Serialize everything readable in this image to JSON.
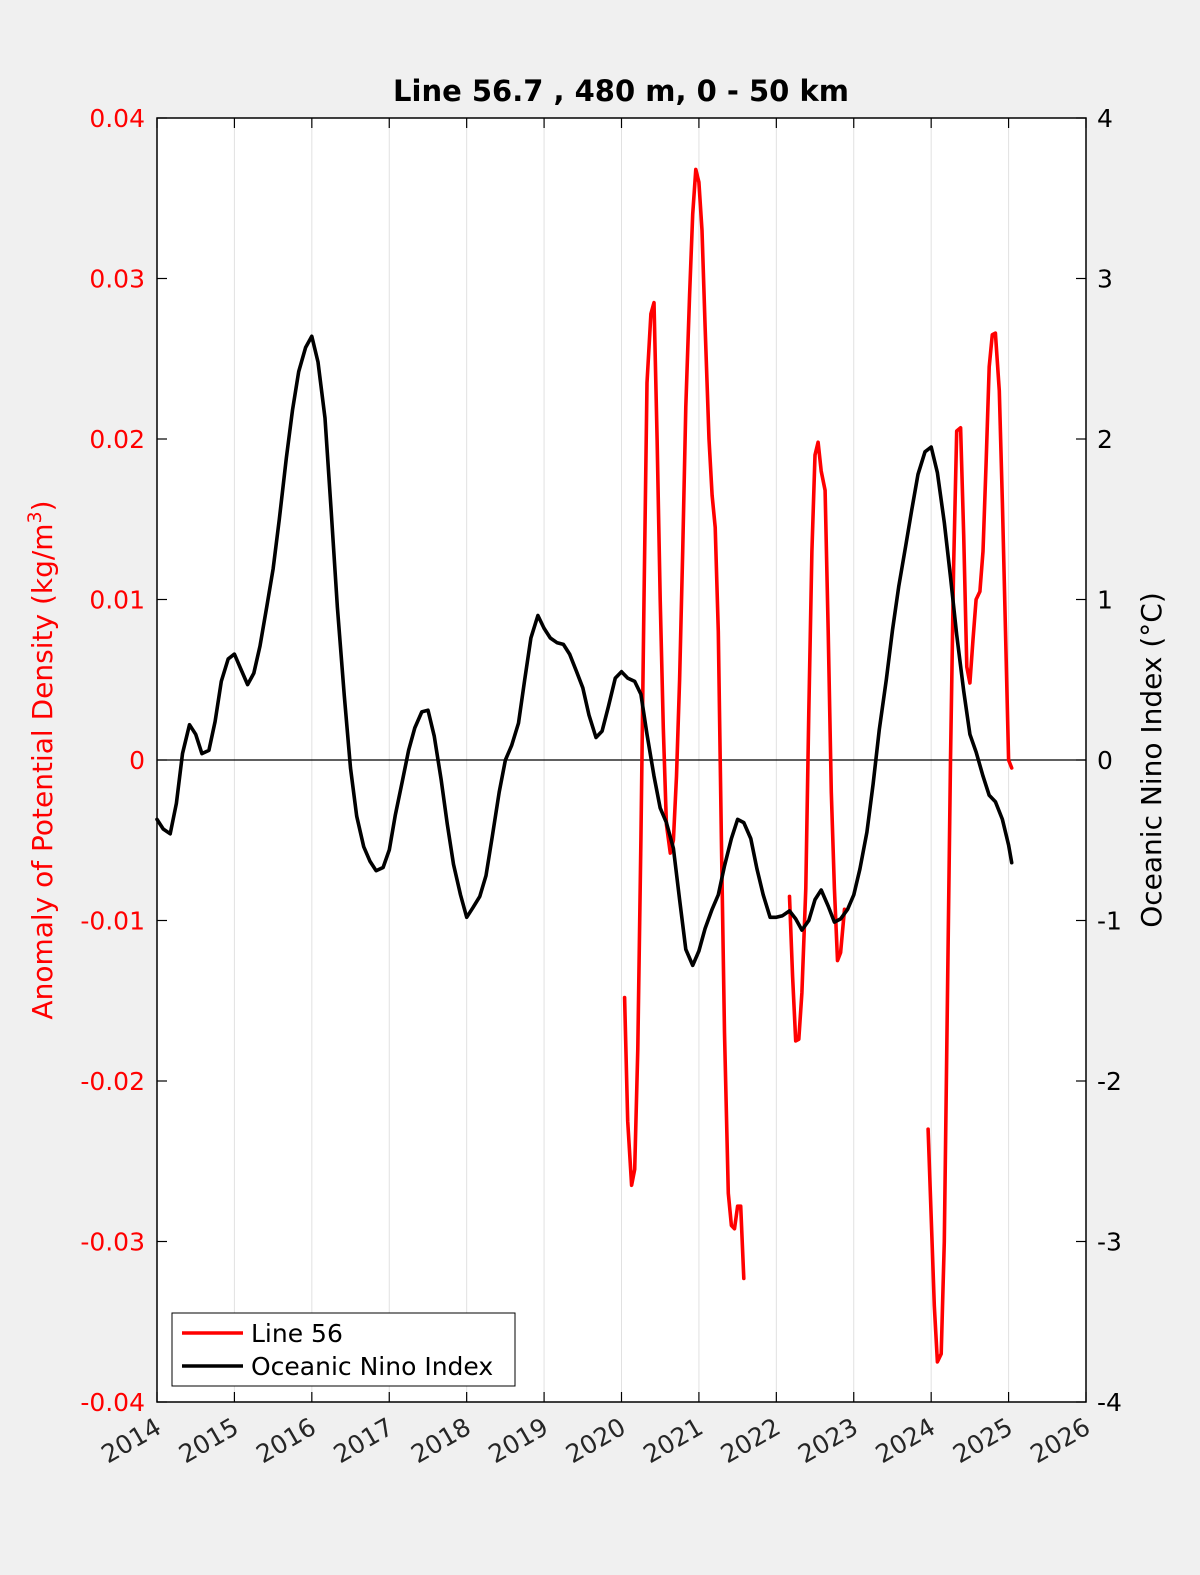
{
  "chart_data": {
    "type": "line",
    "title": "Line 56.7 , 480 m, 0 - 50 km",
    "xlabel": "",
    "xlim": [
      2014,
      2026
    ],
    "x_ticks": [
      "2014",
      "2015",
      "2016",
      "2017",
      "2018",
      "2019",
      "2020",
      "2021",
      "2022",
      "2023",
      "2024",
      "2025",
      "2026"
    ],
    "y_left": {
      "label": "Anomaly of Potential Density (kg/m",
      "label_superscript": "3",
      "label_suffix": ")",
      "lim": [
        -0.04,
        0.04
      ],
      "ticks": [
        "-0.04",
        "-0.03",
        "-0.02",
        "-0.01",
        "0",
        "0.01",
        "0.02",
        "0.03",
        "0.04"
      ],
      "color": "#ff0000"
    },
    "y_right": {
      "label": "Oceanic Nino Index (°C)",
      "lim": [
        -4,
        4
      ],
      "ticks": [
        "-4",
        "-3",
        "-2",
        "-1",
        "0",
        "1",
        "2",
        "3",
        "4"
      ],
      "color": "#000000"
    },
    "grid": "vertical",
    "legend_position": "bottom-left",
    "series": [
      {
        "name": "Line 56",
        "axis": "left",
        "color": "#ff0000",
        "segments": [
          [
            [
              2020.04,
              -0.0148
            ],
            [
              2020.08,
              -0.0225
            ],
            [
              2020.13,
              -0.0265
            ],
            [
              2020.17,
              -0.0255
            ],
            [
              2020.21,
              -0.018
            ],
            [
              2020.25,
              -0.005
            ],
            [
              2020.29,
              0.01
            ],
            [
              2020.33,
              0.0235
            ],
            [
              2020.38,
              0.0278
            ],
            [
              2020.42,
              0.0285
            ],
            [
              2020.46,
              0.02
            ],
            [
              2020.5,
              0.01
            ],
            [
              2020.54,
              0.002
            ],
            [
              2020.58,
              -0.004
            ],
            [
              2020.63,
              -0.0058
            ],
            [
              2020.67,
              -0.005
            ],
            [
              2020.71,
              -0.001
            ],
            [
              2020.75,
              0.005
            ],
            [
              2020.79,
              0.013
            ],
            [
              2020.83,
              0.022
            ],
            [
              2020.88,
              0.029
            ],
            [
              2020.92,
              0.034
            ],
            [
              2020.96,
              0.0368
            ],
            [
              2021.0,
              0.036
            ],
            [
              2021.04,
              0.033
            ],
            [
              2021.08,
              0.027
            ],
            [
              2021.13,
              0.02
            ],
            [
              2021.17,
              0.0165
            ],
            [
              2021.21,
              0.0145
            ],
            [
              2021.25,
              0.008
            ],
            [
              2021.29,
              -0.005
            ],
            [
              2021.33,
              -0.017
            ],
            [
              2021.38,
              -0.027
            ],
            [
              2021.42,
              -0.029
            ],
            [
              2021.46,
              -0.0292
            ],
            [
              2021.5,
              -0.0278
            ],
            [
              2021.54,
              -0.0278
            ],
            [
              2021.58,
              -0.0323
            ]
          ],
          [
            [
              2022.17,
              -0.0085
            ],
            [
              2022.21,
              -0.0135
            ],
            [
              2022.25,
              -0.0175
            ],
            [
              2022.29,
              -0.0174
            ],
            [
              2022.33,
              -0.0145
            ],
            [
              2022.38,
              -0.008
            ],
            [
              2022.42,
              0.003
            ],
            [
              2022.46,
              0.013
            ],
            [
              2022.5,
              0.019
            ],
            [
              2022.54,
              0.0198
            ],
            [
              2022.58,
              0.018
            ],
            [
              2022.63,
              0.0168
            ],
            [
              2022.67,
              0.008
            ],
            [
              2022.71,
              -0.002
            ],
            [
              2022.75,
              -0.008
            ],
            [
              2022.79,
              -0.0125
            ],
            [
              2022.83,
              -0.012
            ],
            [
              2022.88,
              -0.0093
            ]
          ],
          [
            [
              2023.96,
              -0.023
            ],
            [
              2024.0,
              -0.0285
            ],
            [
              2024.04,
              -0.034
            ],
            [
              2024.08,
              -0.0375
            ],
            [
              2024.13,
              -0.037
            ],
            [
              2024.17,
              -0.03
            ],
            [
              2024.21,
              -0.015
            ],
            [
              2024.25,
              0.0
            ],
            [
              2024.29,
              0.012
            ],
            [
              2024.33,
              0.0205
            ],
            [
              2024.38,
              0.0207
            ],
            [
              2024.42,
              0.014
            ],
            [
              2024.46,
              0.0058
            ],
            [
              2024.5,
              0.0048
            ],
            [
              2024.54,
              0.0075
            ],
            [
              2024.58,
              0.01
            ],
            [
              2024.63,
              0.0105
            ],
            [
              2024.67,
              0.013
            ],
            [
              2024.71,
              0.0185
            ],
            [
              2024.75,
              0.0245
            ],
            [
              2024.79,
              0.0265
            ],
            [
              2024.83,
              0.0266
            ],
            [
              2024.88,
              0.023
            ],
            [
              2024.92,
              0.016
            ],
            [
              2024.96,
              0.008
            ],
            [
              2025.0,
              0.0
            ],
            [
              2025.04,
              -0.0005
            ]
          ]
        ]
      },
      {
        "name": "Oceanic Nino Index",
        "axis": "right",
        "color": "#000000",
        "segments": [
          [
            [
              2014.0,
              -0.37
            ],
            [
              2014.08,
              -0.43
            ],
            [
              2014.17,
              -0.46
            ],
            [
              2014.25,
              -0.27
            ],
            [
              2014.33,
              0.04
            ],
            [
              2014.42,
              0.22
            ],
            [
              2014.5,
              0.16
            ],
            [
              2014.58,
              0.04
            ],
            [
              2014.67,
              0.06
            ],
            [
              2014.75,
              0.24
            ],
            [
              2014.83,
              0.49
            ],
            [
              2014.92,
              0.63
            ],
            [
              2015.0,
              0.66
            ],
            [
              2015.08,
              0.57
            ],
            [
              2015.17,
              0.47
            ],
            [
              2015.25,
              0.54
            ],
            [
              2015.33,
              0.71
            ],
            [
              2015.42,
              0.96
            ],
            [
              2015.5,
              1.19
            ],
            [
              2015.58,
              1.5
            ],
            [
              2015.67,
              1.88
            ],
            [
              2015.75,
              2.18
            ],
            [
              2015.83,
              2.42
            ],
            [
              2015.92,
              2.57
            ],
            [
              2016.0,
              2.64
            ],
            [
              2016.08,
              2.48
            ],
            [
              2016.17,
              2.13
            ],
            [
              2016.25,
              1.55
            ],
            [
              2016.33,
              0.95
            ],
            [
              2016.42,
              0.4
            ],
            [
              2016.5,
              -0.05
            ],
            [
              2016.58,
              -0.35
            ],
            [
              2016.67,
              -0.54
            ],
            [
              2016.75,
              -0.63
            ],
            [
              2016.83,
              -0.69
            ],
            [
              2016.92,
              -0.67
            ],
            [
              2017.0,
              -0.56
            ],
            [
              2017.08,
              -0.34
            ],
            [
              2017.17,
              -0.13
            ],
            [
              2017.25,
              0.06
            ],
            [
              2017.33,
              0.2
            ],
            [
              2017.42,
              0.3
            ],
            [
              2017.5,
              0.31
            ],
            [
              2017.58,
              0.15
            ],
            [
              2017.67,
              -0.12
            ],
            [
              2017.75,
              -0.4
            ],
            [
              2017.83,
              -0.65
            ],
            [
              2017.92,
              -0.84
            ],
            [
              2018.0,
              -0.98
            ],
            [
              2018.08,
              -0.92
            ],
            [
              2018.17,
              -0.85
            ],
            [
              2018.25,
              -0.72
            ],
            [
              2018.33,
              -0.48
            ],
            [
              2018.42,
              -0.2
            ],
            [
              2018.5,
              0.0
            ],
            [
              2018.58,
              0.09
            ],
            [
              2018.67,
              0.23
            ],
            [
              2018.75,
              0.5
            ],
            [
              2018.83,
              0.76
            ],
            [
              2018.92,
              0.9
            ],
            [
              2019.0,
              0.82
            ],
            [
              2019.08,
              0.76
            ],
            [
              2019.17,
              0.73
            ],
            [
              2019.25,
              0.72
            ],
            [
              2019.33,
              0.66
            ],
            [
              2019.42,
              0.55
            ],
            [
              2019.5,
              0.45
            ],
            [
              2019.58,
              0.28
            ],
            [
              2019.67,
              0.14
            ],
            [
              2019.75,
              0.18
            ],
            [
              2019.83,
              0.33
            ],
            [
              2019.92,
              0.51
            ],
            [
              2020.0,
              0.55
            ],
            [
              2020.08,
              0.51
            ],
            [
              2020.17,
              0.49
            ],
            [
              2020.25,
              0.41
            ],
            [
              2020.33,
              0.16
            ],
            [
              2020.42,
              -0.1
            ],
            [
              2020.5,
              -0.3
            ],
            [
              2020.58,
              -0.39
            ],
            [
              2020.67,
              -0.55
            ],
            [
              2020.75,
              -0.87
            ],
            [
              2020.83,
              -1.18
            ],
            [
              2020.92,
              -1.28
            ],
            [
              2021.0,
              -1.19
            ],
            [
              2021.08,
              -1.05
            ],
            [
              2021.17,
              -0.93
            ],
            [
              2021.25,
              -0.84
            ],
            [
              2021.33,
              -0.66
            ],
            [
              2021.42,
              -0.49
            ],
            [
              2021.5,
              -0.37
            ],
            [
              2021.58,
              -0.39
            ],
            [
              2021.67,
              -0.49
            ],
            [
              2021.75,
              -0.68
            ],
            [
              2021.83,
              -0.84
            ],
            [
              2021.92,
              -0.98
            ],
            [
              2022.0,
              -0.98
            ],
            [
              2022.08,
              -0.97
            ],
            [
              2022.17,
              -0.94
            ],
            [
              2022.25,
              -0.99
            ],
            [
              2022.33,
              -1.06
            ],
            [
              2022.42,
              -1.0
            ],
            [
              2022.5,
              -0.87
            ],
            [
              2022.58,
              -0.81
            ],
            [
              2022.67,
              -0.91
            ],
            [
              2022.75,
              -1.01
            ],
            [
              2022.83,
              -0.99
            ],
            [
              2022.92,
              -0.93
            ],
            [
              2023.0,
              -0.84
            ],
            [
              2023.08,
              -0.68
            ],
            [
              2023.17,
              -0.45
            ],
            [
              2023.25,
              -0.15
            ],
            [
              2023.33,
              0.19
            ],
            [
              2023.42,
              0.5
            ],
            [
              2023.5,
              0.81
            ],
            [
              2023.58,
              1.08
            ],
            [
              2023.67,
              1.33
            ],
            [
              2023.75,
              1.56
            ],
            [
              2023.83,
              1.78
            ],
            [
              2023.92,
              1.92
            ],
            [
              2024.0,
              1.95
            ],
            [
              2024.08,
              1.79
            ],
            [
              2024.17,
              1.48
            ],
            [
              2024.25,
              1.14
            ],
            [
              2024.33,
              0.78
            ],
            [
              2024.42,
              0.43
            ],
            [
              2024.5,
              0.16
            ],
            [
              2024.58,
              0.05
            ],
            [
              2024.67,
              -0.1
            ],
            [
              2024.75,
              -0.22
            ],
            [
              2024.83,
              -0.26
            ],
            [
              2024.92,
              -0.37
            ],
            [
              2025.0,
              -0.53
            ],
            [
              2025.04,
              -0.64
            ]
          ]
        ]
      }
    ]
  }
}
